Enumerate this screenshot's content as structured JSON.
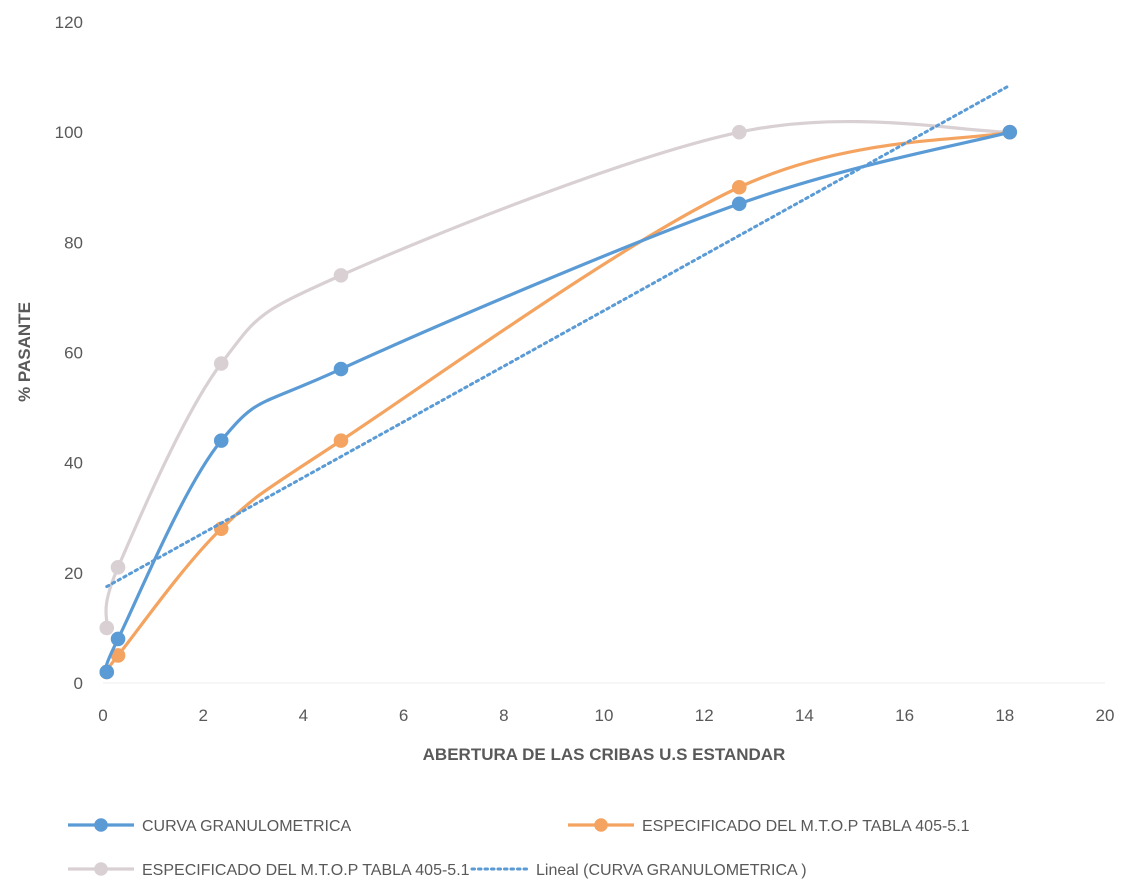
{
  "chart_data": {
    "type": "scatter",
    "xlabel": "ABERTURA DE LAS CRIBAS U.S ESTANDAR",
    "ylabel": "% PASANTE",
    "xlim": [
      0,
      20
    ],
    "ylim": [
      0,
      120
    ],
    "x_ticks": [
      0,
      2,
      4,
      6,
      8,
      10,
      12,
      14,
      16,
      18,
      20
    ],
    "y_ticks": [
      0,
      20,
      40,
      60,
      80,
      100,
      120
    ],
    "grid": false,
    "legend_position": "bottom",
    "series": [
      {
        "name": "CURVA GRANULOMETRICA",
        "color": "#5b9bd5",
        "style": "smooth-line-markers",
        "x": [
          0.075,
          0.3,
          2.36,
          4.75,
          12.7,
          18.1
        ],
        "y": [
          2,
          8,
          44,
          57,
          87,
          100
        ]
      },
      {
        "name": "ESPECIFICADO DEL M.T.O.P TABLA 405-5.1",
        "color": "#f4a460",
        "style": "smooth-line-markers",
        "x": [
          0.075,
          0.3,
          2.36,
          4.75,
          12.7,
          18.1
        ],
        "y": [
          2,
          5,
          28,
          44,
          90,
          100
        ]
      },
      {
        "name": "ESPECIFICADO DEL M.T.O.P TABLA 405-5.1",
        "color": "#d9d0d3",
        "style": "smooth-line-markers",
        "x": [
          0.075,
          0.3,
          2.36,
          4.75,
          12.7,
          18.1
        ],
        "y": [
          10,
          21,
          58,
          74,
          100,
          100
        ]
      },
      {
        "name": "Lineal (CURVA GRANULOMETRICA )",
        "color": "#5b9bd5",
        "style": "dotted-trendline",
        "x": [
          0.075,
          18.1
        ],
        "y": [
          17.5,
          108.5
        ]
      }
    ]
  }
}
